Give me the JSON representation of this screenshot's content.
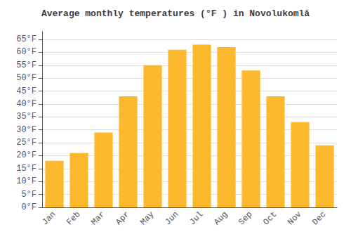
{
  "chart_data": {
    "type": "bar",
    "title": "Average monthly temperatures (°F ) in Novolukomlâ",
    "categories": [
      "Jan",
      "Feb",
      "Mar",
      "Apr",
      "May",
      "Jun",
      "Jul",
      "Aug",
      "Sep",
      "Oct",
      "Nov",
      "Dec"
    ],
    "values": [
      18,
      21,
      29,
      43,
      55,
      61,
      63,
      62,
      53,
      43,
      33,
      24
    ],
    "color": "#FDB92E",
    "ylim": [
      0,
      68
    ],
    "yticks": [
      {
        "value": 0,
        "label": "0°F"
      },
      {
        "value": 5,
        "label": "5°F"
      },
      {
        "value": 10,
        "label": "10°F"
      },
      {
        "value": 15,
        "label": "15°F"
      },
      {
        "value": 20,
        "label": "20°F"
      },
      {
        "value": 25,
        "label": "25°F"
      },
      {
        "value": 30,
        "label": "30°F"
      },
      {
        "value": 35,
        "label": "35°F"
      },
      {
        "value": 40,
        "label": "40°F"
      },
      {
        "value": 45,
        "label": "45°F"
      },
      {
        "value": 50,
        "label": "50°F"
      },
      {
        "value": 55,
        "label": "55°F"
      },
      {
        "value": 60,
        "label": "60°F"
      },
      {
        "value": 65,
        "label": "65°F"
      }
    ],
    "grid": true
  }
}
